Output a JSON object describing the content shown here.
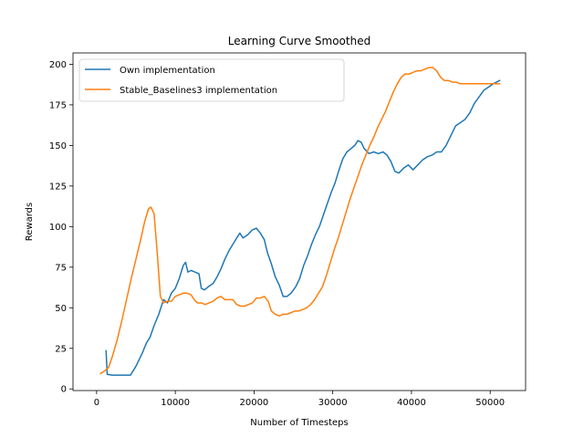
{
  "chart_data": {
    "type": "line",
    "title": "Learning Curve Smoothed",
    "xlabel": "Number of Timesteps",
    "ylabel": "Rewards",
    "xlim": [
      -3000,
      54500
    ],
    "ylim": [
      -1,
      207
    ],
    "xticks": [
      0,
      10000,
      20000,
      30000,
      40000,
      50000
    ],
    "xtick_labels": [
      "0",
      "10000",
      "20000",
      "30000",
      "40000",
      "50000"
    ],
    "yticks": [
      0,
      25,
      50,
      75,
      100,
      125,
      150,
      175,
      200
    ],
    "ytick_labels": [
      "0",
      "25",
      "50",
      "75",
      "100",
      "125",
      "150",
      "175",
      "200"
    ],
    "grid": false,
    "legend_position": "upper-left",
    "series": [
      {
        "name": "Own implementation",
        "color": "#1f77b4",
        "points": [
          [
            1200,
            23.5
          ],
          [
            1350,
            9
          ],
          [
            2000,
            8.5
          ],
          [
            3000,
            8.5
          ],
          [
            4300,
            8.5
          ],
          [
            5000,
            14
          ],
          [
            5800,
            22
          ],
          [
            6300,
            28
          ],
          [
            6800,
            32
          ],
          [
            7300,
            39
          ],
          [
            7900,
            46
          ],
          [
            8500,
            55
          ],
          [
            9000,
            53
          ],
          [
            9500,
            59
          ],
          [
            10000,
            62
          ],
          [
            10500,
            68
          ],
          [
            11000,
            76
          ],
          [
            11300,
            78
          ],
          [
            11600,
            72
          ],
          [
            12000,
            73
          ],
          [
            12500,
            72
          ],
          [
            13000,
            71
          ],
          [
            13300,
            62
          ],
          [
            13700,
            61
          ],
          [
            14200,
            63
          ],
          [
            14800,
            65
          ],
          [
            15300,
            69
          ],
          [
            15800,
            74
          ],
          [
            16300,
            80
          ],
          [
            16800,
            85
          ],
          [
            17300,
            89
          ],
          [
            17800,
            93
          ],
          [
            18200,
            96
          ],
          [
            18600,
            93
          ],
          [
            19200,
            95
          ],
          [
            19800,
            98
          ],
          [
            20300,
            99
          ],
          [
            20800,
            96
          ],
          [
            21300,
            92
          ],
          [
            21700,
            84
          ],
          [
            22200,
            77
          ],
          [
            22700,
            69
          ],
          [
            23200,
            64
          ],
          [
            23700,
            57
          ],
          [
            24200,
            57
          ],
          [
            24700,
            59
          ],
          [
            25300,
            63
          ],
          [
            25800,
            68
          ],
          [
            26300,
            76
          ],
          [
            26800,
            82
          ],
          [
            27300,
            89
          ],
          [
            27800,
            95
          ],
          [
            28300,
            100
          ],
          [
            28800,
            107
          ],
          [
            29300,
            114
          ],
          [
            29800,
            121
          ],
          [
            30300,
            127
          ],
          [
            30800,
            135
          ],
          [
            31300,
            142
          ],
          [
            31800,
            146
          ],
          [
            32300,
            148
          ],
          [
            32800,
            150
          ],
          [
            33200,
            153
          ],
          [
            33600,
            152
          ],
          [
            34000,
            148
          ],
          [
            34600,
            145
          ],
          [
            35200,
            146
          ],
          [
            35800,
            145
          ],
          [
            36400,
            146
          ],
          [
            36900,
            144
          ],
          [
            37400,
            140
          ],
          [
            37900,
            134
          ],
          [
            38400,
            133
          ],
          [
            39000,
            136
          ],
          [
            39600,
            138
          ],
          [
            40200,
            135
          ],
          [
            40800,
            138
          ],
          [
            41400,
            141
          ],
          [
            42000,
            143
          ],
          [
            42600,
            144
          ],
          [
            43200,
            146
          ],
          [
            43800,
            146
          ],
          [
            44400,
            150
          ],
          [
            45000,
            156
          ],
          [
            45600,
            162
          ],
          [
            46200,
            164
          ],
          [
            46800,
            166
          ],
          [
            47400,
            170
          ],
          [
            48000,
            176
          ],
          [
            48600,
            180
          ],
          [
            49200,
            184
          ],
          [
            49800,
            186
          ],
          [
            50400,
            188
          ],
          [
            51200,
            190
          ]
        ]
      },
      {
        "name": "Stable_Baselines3 implementation",
        "color": "#ff7f0e",
        "points": [
          [
            500,
            9.5
          ],
          [
            1000,
            11
          ],
          [
            1500,
            13
          ],
          [
            2000,
            20
          ],
          [
            2600,
            30
          ],
          [
            3200,
            42
          ],
          [
            3800,
            55
          ],
          [
            4400,
            68
          ],
          [
            5000,
            80
          ],
          [
            5600,
            92
          ],
          [
            6100,
            103
          ],
          [
            6600,
            111
          ],
          [
            6900,
            112
          ],
          [
            7300,
            108
          ],
          [
            7700,
            84
          ],
          [
            8100,
            57
          ],
          [
            8500,
            53
          ],
          [
            9000,
            54
          ],
          [
            9500,
            54
          ],
          [
            10000,
            57
          ],
          [
            10500,
            58
          ],
          [
            11000,
            59
          ],
          [
            11500,
            59
          ],
          [
            12000,
            58
          ],
          [
            12400,
            55
          ],
          [
            12800,
            53
          ],
          [
            13300,
            53
          ],
          [
            13800,
            52
          ],
          [
            14300,
            53
          ],
          [
            14800,
            54
          ],
          [
            15300,
            56
          ],
          [
            15800,
            57
          ],
          [
            16300,
            55
          ],
          [
            16800,
            55
          ],
          [
            17300,
            55
          ],
          [
            17800,
            52
          ],
          [
            18300,
            51
          ],
          [
            18800,
            51
          ],
          [
            19300,
            52
          ],
          [
            19800,
            53
          ],
          [
            20300,
            56
          ],
          [
            20800,
            56
          ],
          [
            21300,
            57
          ],
          [
            21800,
            54
          ],
          [
            22200,
            48
          ],
          [
            22700,
            46
          ],
          [
            23200,
            45
          ],
          [
            23700,
            46
          ],
          [
            24200,
            46
          ],
          [
            24700,
            47
          ],
          [
            25200,
            48
          ],
          [
            25700,
            48
          ],
          [
            26200,
            49
          ],
          [
            26700,
            50
          ],
          [
            27200,
            52
          ],
          [
            27700,
            55
          ],
          [
            28200,
            59
          ],
          [
            28700,
            63
          ],
          [
            29200,
            70
          ],
          [
            29700,
            78
          ],
          [
            30200,
            86
          ],
          [
            30700,
            93
          ],
          [
            31200,
            101
          ],
          [
            31700,
            109
          ],
          [
            32200,
            117
          ],
          [
            32700,
            124
          ],
          [
            33200,
            131
          ],
          [
            33700,
            138
          ],
          [
            34200,
            144
          ],
          [
            34700,
            150
          ],
          [
            35200,
            155
          ],
          [
            35700,
            161
          ],
          [
            36200,
            166
          ],
          [
            36700,
            171
          ],
          [
            37200,
            177
          ],
          [
            37700,
            183
          ],
          [
            38200,
            188
          ],
          [
            38700,
            192
          ],
          [
            39200,
            194
          ],
          [
            39700,
            194
          ],
          [
            40200,
            195
          ],
          [
            40700,
            196
          ],
          [
            41200,
            196
          ],
          [
            41700,
            197
          ],
          [
            42200,
            198
          ],
          [
            42700,
            198
          ],
          [
            43200,
            196
          ],
          [
            43700,
            192
          ],
          [
            44200,
            190
          ],
          [
            44700,
            190
          ],
          [
            45200,
            189
          ],
          [
            45700,
            189
          ],
          [
            46200,
            188
          ],
          [
            46700,
            188
          ],
          [
            47200,
            188
          ],
          [
            47700,
            188
          ],
          [
            48200,
            188
          ],
          [
            48700,
            188
          ],
          [
            49200,
            188
          ],
          [
            49700,
            188
          ],
          [
            50200,
            188
          ],
          [
            50700,
            188
          ],
          [
            51200,
            188
          ]
        ]
      }
    ]
  }
}
